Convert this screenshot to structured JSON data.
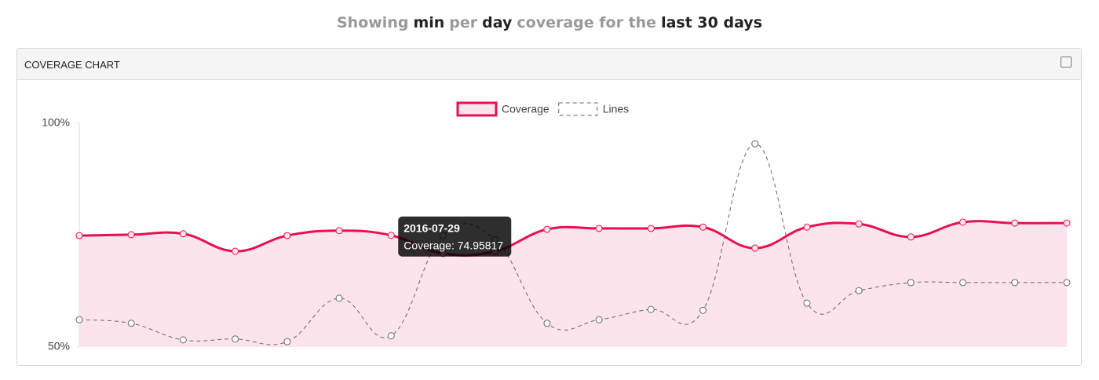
{
  "header": {
    "parts": [
      {
        "text": "Showing",
        "strong": false
      },
      {
        "text": "min",
        "strong": true
      },
      {
        "text": "per",
        "strong": false
      },
      {
        "text": "day",
        "strong": true
      },
      {
        "text": "coverage for the",
        "strong": false
      },
      {
        "text": "last 30 days",
        "strong": true
      }
    ]
  },
  "panel": {
    "title": "COVERAGE CHART"
  },
  "chart_data": {
    "type": "line",
    "categories": [
      null,
      null,
      null,
      null,
      null,
      null,
      "2016-07-29",
      null,
      null,
      null,
      null,
      null,
      null,
      null,
      null,
      null,
      null,
      null,
      null,
      null
    ],
    "series": [
      {
        "name": "Coverage",
        "color": "#e8104d",
        "line_style": "solid",
        "fill": true,
        "values": [
          74.9,
          75.1,
          75.3,
          71.4,
          74.9,
          76.0,
          74.95817,
          70.9,
          71.4,
          76.3,
          76.5,
          76.5,
          76.8,
          72.1,
          76.8,
          77.5,
          74.6,
          77.9,
          77.7,
          77.7
        ]
      },
      {
        "name": "Lines",
        "color": "#666666",
        "line_style": "dashed",
        "fill": false,
        "values": [
          56.1,
          55.3,
          51.6,
          51.8,
          51.2,
          60.9,
          52.5,
          74.9,
          74.0,
          55.3,
          56.1,
          58.4,
          58.2,
          95.4,
          59.8,
          62.6,
          64.4,
          64.4,
          64.4,
          64.4
        ]
      }
    ],
    "ylim": [
      50,
      100
    ],
    "yticks": [
      {
        "value": 50,
        "label": "50%"
      },
      {
        "value": 100,
        "label": "100%"
      }
    ],
    "legend": "top",
    "tooltip": {
      "index": 6,
      "series": 0
    }
  }
}
